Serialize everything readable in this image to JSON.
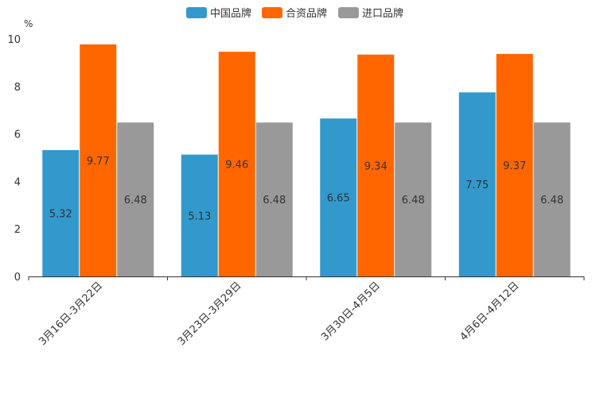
{
  "chart_data": {
    "type": "bar",
    "title": "",
    "ylabel": "%",
    "xlabel": "",
    "ylim": [
      0,
      10
    ],
    "yticks": [
      0,
      2,
      4,
      6,
      8,
      10
    ],
    "categories": [
      "3月16日-3月22日",
      "3月23日-3月29日",
      "3月30日-4月5日",
      "4月6日-4月12日"
    ],
    "series": [
      {
        "name": "中国品牌",
        "color": "#3399CC",
        "values": [
          5.32,
          5.13,
          6.65,
          7.75
        ]
      },
      {
        "name": "合资品牌",
        "color": "#FF6600",
        "values": [
          9.77,
          9.46,
          9.34,
          9.37
        ]
      },
      {
        "name": "进口品牌",
        "color": "#999999",
        "values": [
          6.48,
          6.48,
          6.48,
          6.48
        ]
      }
    ],
    "legend_position": "top-center"
  }
}
